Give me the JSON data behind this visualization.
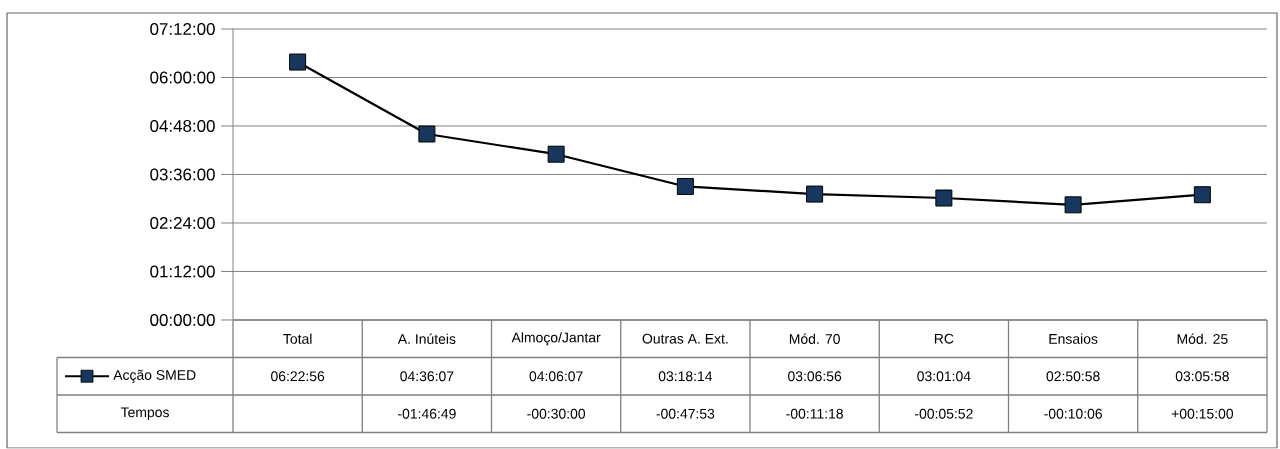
{
  "chart_data": {
    "type": "line",
    "categories": [
      "Total",
      "A. Inúteis",
      "Almoço/Jantar",
      "Outras A. Ext.",
      "Mód. 70",
      "RC",
      "Ensaios",
      "Mód. 25"
    ],
    "series": [
      {
        "name": "Acção SMED",
        "color": "#17375e",
        "values": [
          6.38222,
          4.60194,
          4.10194,
          3.30389,
          3.11556,
          3.01778,
          2.84944,
          3.09944
        ],
        "value_labels": [
          "06:22:56",
          "04:36:07",
          "04:06:07",
          "03:18:14",
          "03:06:56",
          "03:01:04",
          "02:50:58",
          "03:05:58"
        ]
      }
    ],
    "ylim": [
      0,
      7.2
    ],
    "yticks": [
      {
        "value": 0,
        "label": "00:00:00"
      },
      {
        "value": 1.2,
        "label": "01:12:00"
      },
      {
        "value": 2.4,
        "label": "02:24:00"
      },
      {
        "value": 3.6,
        "label": "03:36:00"
      },
      {
        "value": 4.8,
        "label": "04:48:00"
      },
      {
        "value": 6,
        "label": "06:00:00"
      },
      {
        "value": 7.2,
        "label": "07:12:00"
      }
    ],
    "grid": "y",
    "legend": "bottom left",
    "marker": "square",
    "line_style": "solid",
    "annotations": [
      "Tempos",
      "-01:46:49",
      "-00:30:00",
      "-00:47:53",
      "-00:11:18",
      "-00:05:52",
      "-00:10:06",
      "+00:15:00"
    ]
  }
}
